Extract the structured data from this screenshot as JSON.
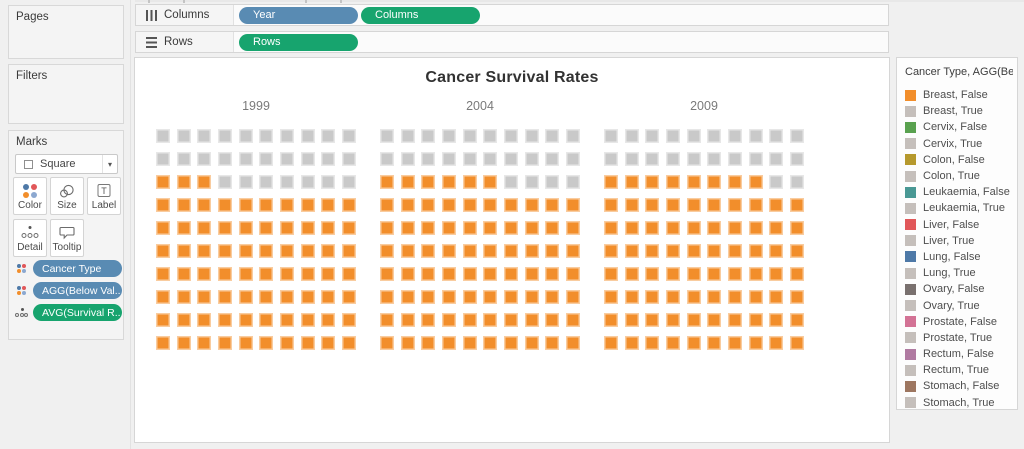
{
  "shelves": {
    "columns": {
      "label": "Columns",
      "pills": [
        {
          "label": "Year",
          "kind": "blue"
        },
        {
          "label": "Columns",
          "kind": "green"
        }
      ]
    },
    "rows": {
      "label": "Rows",
      "pills": [
        {
          "label": "Rows",
          "kind": "green"
        }
      ]
    }
  },
  "sidebar": {
    "pages_title": "Pages",
    "filters_title": "Filters",
    "marks": {
      "title": "Marks",
      "mark_type": "Square",
      "buttons": [
        {
          "label": "Color"
        },
        {
          "label": "Size"
        },
        {
          "label": "Label"
        },
        {
          "label": "Detail"
        },
        {
          "label": "Tooltip"
        }
      ],
      "pills": [
        {
          "label": "Cancer Type",
          "kind": "blue",
          "icon": "color-icon"
        },
        {
          "label": "AGG(Below Val..",
          "kind": "blue",
          "icon": "color-icon"
        },
        {
          "label": "AVG(Survival R..",
          "kind": "green",
          "icon": "detail-icon"
        }
      ]
    }
  },
  "legend": {
    "title": "Cancer Type, AGG(Belo...",
    "items": [
      {
        "label": "Breast, False",
        "color": "#F28E2B"
      },
      {
        "label": "Breast, True",
        "color": "#C5BFBB"
      },
      {
        "label": "Cervix, False",
        "color": "#59A14F"
      },
      {
        "label": "Cervix, True",
        "color": "#C5BFBB"
      },
      {
        "label": "Colon, False",
        "color": "#B6992D"
      },
      {
        "label": "Colon, True",
        "color": "#C5BFBB"
      },
      {
        "label": "Leukaemia, False",
        "color": "#499894"
      },
      {
        "label": "Leukaemia, True",
        "color": "#C5BFBB"
      },
      {
        "label": "Liver, False",
        "color": "#E15759"
      },
      {
        "label": "Liver, True",
        "color": "#C5BFBB"
      },
      {
        "label": "Lung, False",
        "color": "#4E79A7"
      },
      {
        "label": "Lung, True",
        "color": "#C5BFBB"
      },
      {
        "label": "Ovary, False",
        "color": "#79706E"
      },
      {
        "label": "Ovary, True",
        "color": "#C5BFBB"
      },
      {
        "label": "Prostate, False",
        "color": "#D37295"
      },
      {
        "label": "Prostate, True",
        "color": "#C5BFBB"
      },
      {
        "label": "Rectum, False",
        "color": "#B07AA1"
      },
      {
        "label": "Rectum, True",
        "color": "#C5BFBB"
      },
      {
        "label": "Stomach, False",
        "color": "#9D7660"
      },
      {
        "label": "Stomach, True",
        "color": "#C5BFBB"
      }
    ]
  },
  "chart_data": {
    "type": "waffle",
    "title": "Cancer Survival Rates",
    "categories": [
      "1999",
      "2004",
      "2009"
    ],
    "values": [
      73,
      76,
      78
    ],
    "unit_grid": {
      "rows": 10,
      "cols": 10,
      "total_units": 100
    },
    "filled_series": "Breast, False",
    "unfilled_series": "Breast, True",
    "filled_color": "#F28E2B",
    "unfilled_color": "#C9C9C9",
    "fill_direction": "bottom-up"
  },
  "colors": {
    "pill_blue": "#598BB3",
    "pill_green": "#17A46E",
    "accent_orange": "#F28E2B",
    "waffle_gray": "#C9C9C9"
  }
}
